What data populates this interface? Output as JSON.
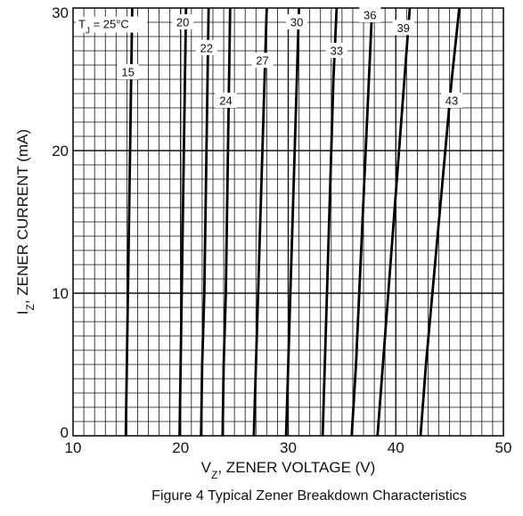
{
  "chart_data": {
    "type": "line",
    "caption": "Figure 4  Typical Zener Breakdown Characteristics",
    "xlabel_main": "V",
    "xlabel_sub": "Z",
    "xlabel_rest": ", ZENER VOLTAGE (V)",
    "ylabel_main": "I",
    "ylabel_sub": "Z",
    "ylabel_rest": ", ZENER CURRENT (mA)",
    "xlim": [
      10,
      50
    ],
    "ylim": [
      0,
      30
    ],
    "x_ticks": [
      10,
      20,
      30,
      40,
      50
    ],
    "y_ticks": [
      0,
      10,
      20,
      30
    ],
    "x_tick_labels": [
      "10",
      "20",
      "30",
      "40",
      "50"
    ],
    "y_tick_labels": [
      "0",
      "10",
      "20",
      "30"
    ],
    "grid": true,
    "condition_main": "T",
    "condition_sub": "J",
    "condition_rest": " = 25°C",
    "series": [
      {
        "name": "15",
        "points": [
          [
            14.9,
            0
          ],
          [
            15.0,
            5
          ],
          [
            15.1,
            10
          ],
          [
            15.2,
            15
          ],
          [
            15.3,
            20
          ],
          [
            15.4,
            25
          ],
          [
            15.5,
            30
          ]
        ]
      },
      {
        "name": "20",
        "points": [
          [
            19.9,
            0
          ],
          [
            20.0,
            5
          ],
          [
            20.1,
            10
          ],
          [
            20.2,
            15
          ],
          [
            20.3,
            20
          ],
          [
            20.4,
            25
          ],
          [
            20.5,
            30
          ]
        ]
      },
      {
        "name": "22",
        "points": [
          [
            21.9,
            0
          ],
          [
            22.0,
            5
          ],
          [
            22.2,
            10
          ],
          [
            22.3,
            15
          ],
          [
            22.4,
            20
          ],
          [
            22.5,
            25
          ],
          [
            22.6,
            30
          ]
        ]
      },
      {
        "name": "24",
        "points": [
          [
            23.9,
            0
          ],
          [
            24.0,
            5
          ],
          [
            24.2,
            10
          ],
          [
            24.3,
            15
          ],
          [
            24.4,
            20
          ],
          [
            24.5,
            25
          ],
          [
            24.6,
            30
          ]
        ]
      },
      {
        "name": "27",
        "points": [
          [
            26.8,
            0
          ],
          [
            27.0,
            5
          ],
          [
            27.2,
            10
          ],
          [
            27.4,
            15
          ],
          [
            27.6,
            20
          ],
          [
            27.8,
            25
          ],
          [
            28.0,
            30
          ]
        ]
      },
      {
        "name": "30",
        "points": [
          [
            29.8,
            0
          ],
          [
            30.0,
            5
          ],
          [
            30.2,
            10
          ],
          [
            30.4,
            15
          ],
          [
            30.6,
            20
          ],
          [
            30.8,
            25
          ],
          [
            31.0,
            30
          ]
        ]
      },
      {
        "name": "33",
        "points": [
          [
            33.2,
            0
          ],
          [
            33.4,
            5
          ],
          [
            33.6,
            10
          ],
          [
            33.8,
            15
          ],
          [
            34.0,
            20
          ],
          [
            34.2,
            25
          ],
          [
            34.5,
            30
          ]
        ]
      },
      {
        "name": "36",
        "points": [
          [
            35.9,
            0
          ],
          [
            36.3,
            5
          ],
          [
            36.6,
            10
          ],
          [
            36.9,
            15
          ],
          [
            37.2,
            20
          ],
          [
            37.5,
            25
          ],
          [
            37.8,
            30
          ]
        ]
      },
      {
        "name": "39",
        "points": [
          [
            38.3,
            0
          ],
          [
            38.8,
            5
          ],
          [
            39.3,
            10
          ],
          [
            39.8,
            15
          ],
          [
            40.3,
            20
          ],
          [
            40.8,
            25
          ],
          [
            41.3,
            30
          ]
        ]
      },
      {
        "name": "43",
        "points": [
          [
            42.3,
            0
          ],
          [
            42.8,
            5
          ],
          [
            43.4,
            10
          ],
          [
            44.0,
            15
          ],
          [
            44.6,
            20
          ],
          [
            45.2,
            25
          ],
          [
            45.9,
            30
          ]
        ]
      }
    ],
    "curve_labels": [
      {
        "text": "15",
        "x": 15.1,
        "y": 25.5
      },
      {
        "text": "20",
        "x": 20.2,
        "y": 29.0
      },
      {
        "text": "22",
        "x": 22.4,
        "y": 27.2
      },
      {
        "text": "24",
        "x": 24.2,
        "y": 23.5
      },
      {
        "text": "27",
        "x": 27.6,
        "y": 26.3
      },
      {
        "text": "30",
        "x": 30.8,
        "y": 29.0
      },
      {
        "text": "33",
        "x": 34.5,
        "y": 27.0
      },
      {
        "text": "36",
        "x": 37.6,
        "y": 29.5
      },
      {
        "text": "39",
        "x": 40.7,
        "y": 28.6
      },
      {
        "text": "43",
        "x": 45.2,
        "y": 23.5
      }
    ]
  }
}
